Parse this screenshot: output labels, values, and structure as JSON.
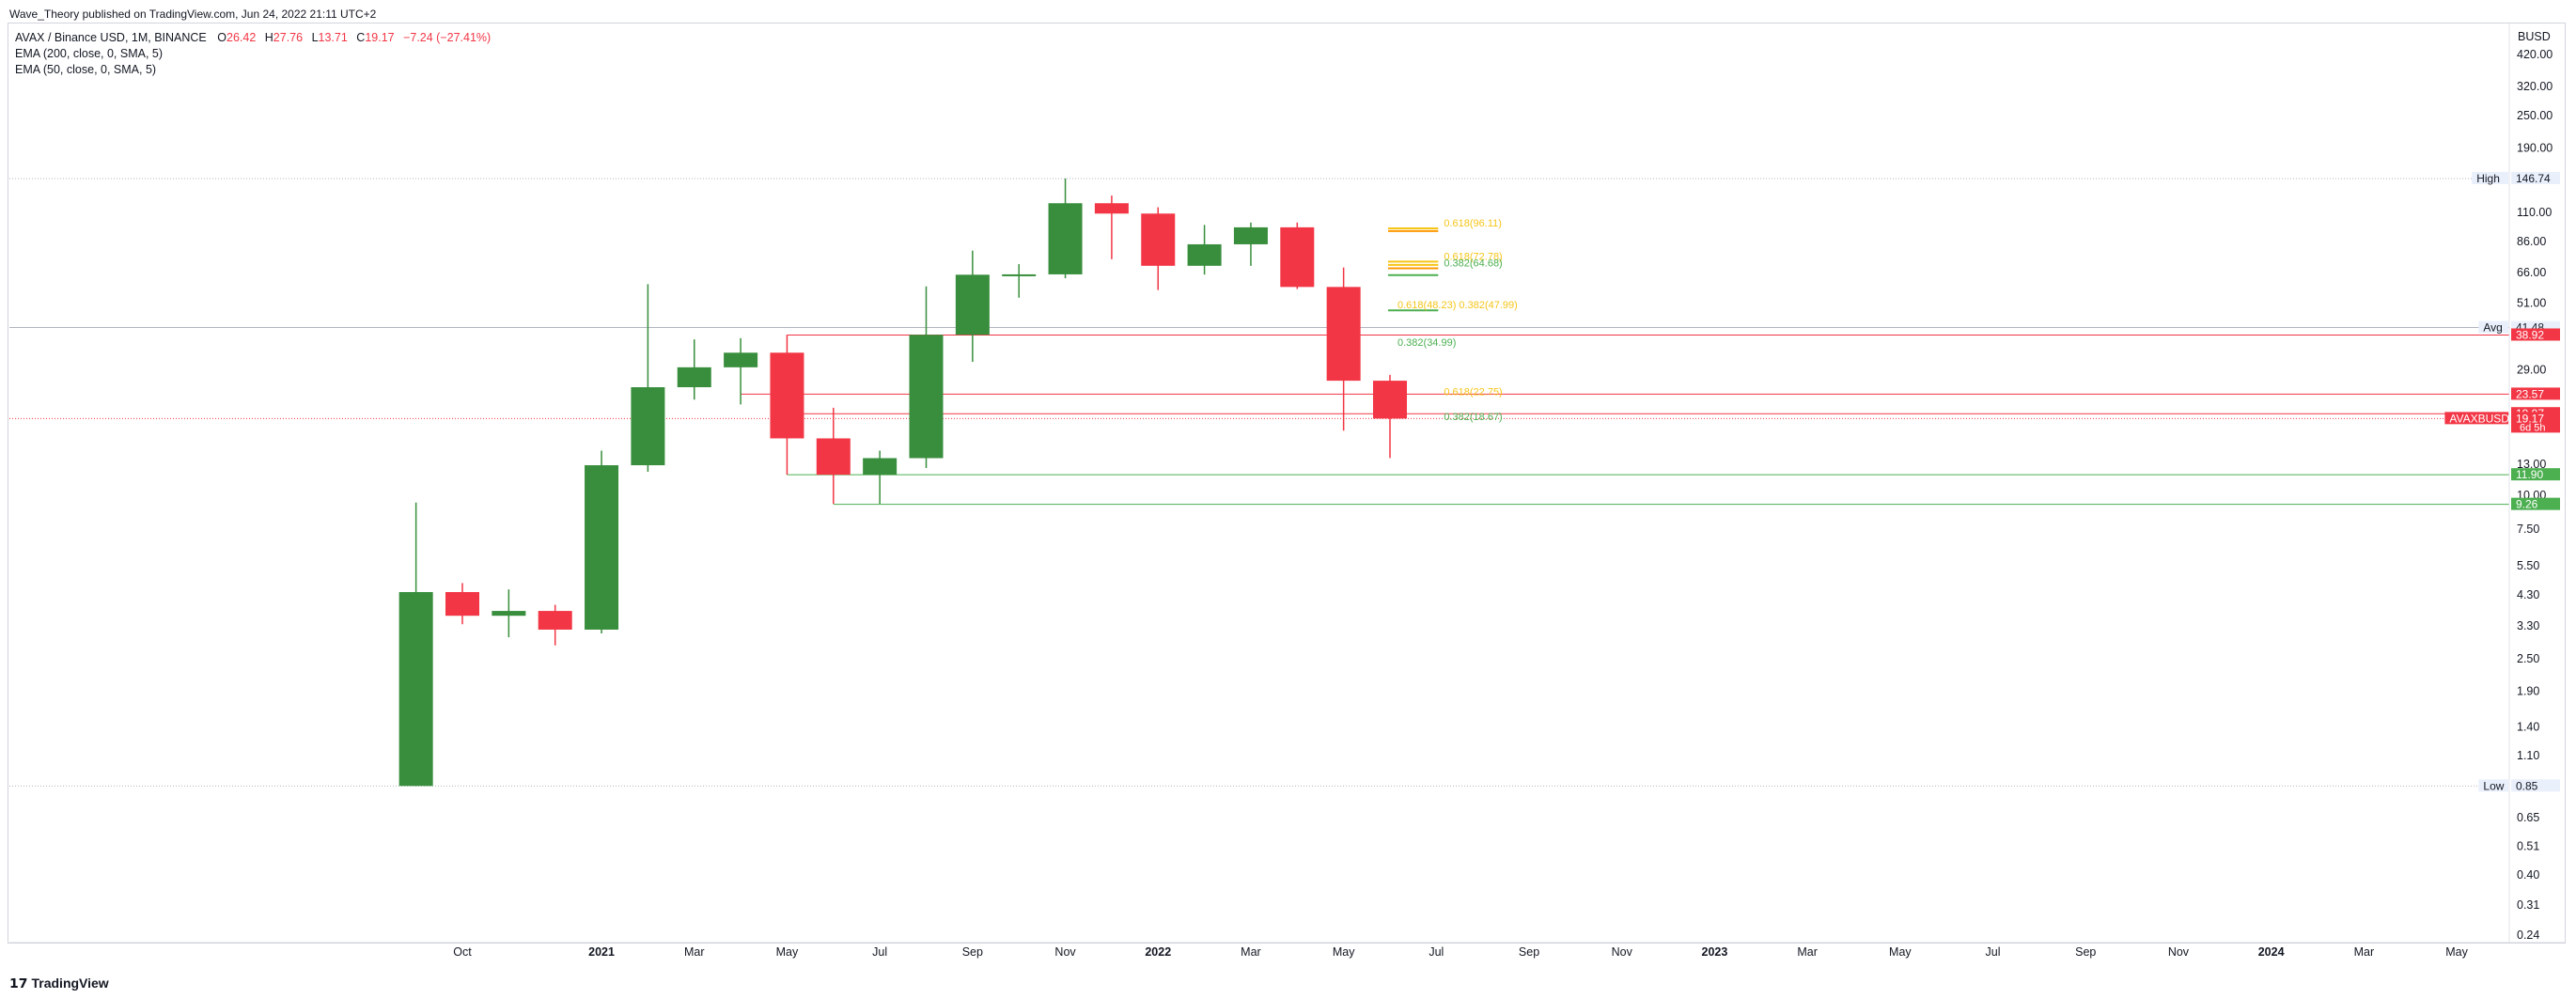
{
  "published": "Wave_Theory published on TradingView.com, Jun 24, 2022 21:11 UTC+2",
  "footer": {
    "brand": "TradingView",
    "logo": "tradingview-logo-icon"
  },
  "legend": {
    "symbol": "AVAX / Binance USD, 1M, BINANCE",
    "o_label": "O",
    "o_value": "26.42",
    "h_label": "H",
    "h_value": "27.76",
    "l_label": "L",
    "l_value": "13.71",
    "c_label": "C",
    "c_value": "19.17",
    "change": "−7.24 (−27.41%)",
    "indicators": [
      "EMA (200, close, 0, SMA, 5)",
      "EMA (50, close, 0, SMA, 5)"
    ]
  },
  "colors": {
    "up": "#388e3c",
    "down": "#f23645",
    "fib_yellow": "#f5c518",
    "fib_green": "#4caf50",
    "fib_orange": "#ff9800"
  },
  "chart_data": {
    "type": "candlestick",
    "title": "AVAX / Binance USD, 1M, BINANCE",
    "currency": "BUSD",
    "y_scale": "log",
    "ylim": [
      0.24,
      420
    ],
    "yticks": [
      "420.00",
      "320.00",
      "250.00",
      "190.00",
      "110.00",
      "86.00",
      "66.00",
      "51.00",
      "29.00",
      "13.00",
      "10.00",
      "7.50",
      "5.50",
      "4.30",
      "3.30",
      "2.50",
      "1.90",
      "1.40",
      "1.10",
      "0.65",
      "0.51",
      "0.40",
      "0.31",
      "0.24"
    ],
    "xticks": [
      {
        "label": "Oct",
        "month": "2020-10",
        "bold": false
      },
      {
        "label": "2021",
        "month": "2021-01",
        "bold": true
      },
      {
        "label": "Mar",
        "month": "2021-03",
        "bold": false
      },
      {
        "label": "May",
        "month": "2021-05",
        "bold": false
      },
      {
        "label": "Jul",
        "month": "2021-07",
        "bold": false
      },
      {
        "label": "Sep",
        "month": "2021-09",
        "bold": false
      },
      {
        "label": "Nov",
        "month": "2021-11",
        "bold": false
      },
      {
        "label": "2022",
        "month": "2022-01",
        "bold": true
      },
      {
        "label": "Mar",
        "month": "2022-03",
        "bold": false
      },
      {
        "label": "May",
        "month": "2022-05",
        "bold": false
      },
      {
        "label": "Jul",
        "month": "2022-07",
        "bold": false
      },
      {
        "label": "Sep",
        "month": "2022-09",
        "bold": false
      },
      {
        "label": "Nov",
        "month": "2022-11",
        "bold": false
      },
      {
        "label": "2023",
        "month": "2023-01",
        "bold": true
      },
      {
        "label": "Mar",
        "month": "2023-03",
        "bold": false
      },
      {
        "label": "May",
        "month": "2023-05",
        "bold": false
      },
      {
        "label": "Jul",
        "month": "2023-07",
        "bold": false
      },
      {
        "label": "Sep",
        "month": "2023-09",
        "bold": false
      },
      {
        "label": "Nov",
        "month": "2023-11",
        "bold": false
      },
      {
        "label": "2024",
        "month": "2024-01",
        "bold": true
      },
      {
        "label": "Mar",
        "month": "2024-03",
        "bold": false
      },
      {
        "label": "May",
        "month": "2024-05",
        "bold": false
      }
    ],
    "candles": [
      {
        "month": "2020-09",
        "open": 0.85,
        "high": 9.4,
        "low": 0.85,
        "close": 4.4
      },
      {
        "month": "2020-10",
        "open": 4.4,
        "high": 4.75,
        "low": 3.35,
        "close": 3.6
      },
      {
        "month": "2020-11",
        "open": 3.6,
        "high": 4.5,
        "low": 3.0,
        "close": 3.75
      },
      {
        "month": "2020-12",
        "open": 3.75,
        "high": 3.95,
        "low": 2.8,
        "close": 3.2
      },
      {
        "month": "2021-01",
        "open": 3.2,
        "high": 14.6,
        "low": 3.1,
        "close": 12.9
      },
      {
        "month": "2021-02",
        "open": 12.9,
        "high": 59.9,
        "low": 12.2,
        "close": 25.0
      },
      {
        "month": "2021-03",
        "open": 25.0,
        "high": 37.5,
        "low": 22.5,
        "close": 29.6
      },
      {
        "month": "2021-04",
        "open": 29.6,
        "high": 37.9,
        "low": 21.6,
        "close": 33.5
      },
      {
        "month": "2021-05",
        "open": 33.5,
        "high": 39.0,
        "low": 11.9,
        "close": 16.2
      },
      {
        "month": "2021-06",
        "open": 16.2,
        "high": 21.0,
        "low": 9.3,
        "close": 11.9
      },
      {
        "month": "2021-07",
        "open": 11.9,
        "high": 14.6,
        "low": 9.3,
        "close": 13.7
      },
      {
        "month": "2021-08",
        "open": 13.7,
        "high": 58.8,
        "low": 12.6,
        "close": 39.0
      },
      {
        "month": "2021-09",
        "open": 39.0,
        "high": 79.6,
        "low": 31.0,
        "close": 64.9
      },
      {
        "month": "2021-10",
        "open": 64.9,
        "high": 71.0,
        "low": 53.4,
        "close": 65.1
      },
      {
        "month": "2021-11",
        "open": 65.1,
        "high": 146.74,
        "low": 63.0,
        "close": 119.0
      },
      {
        "month": "2021-12",
        "open": 119.0,
        "high": 127.0,
        "low": 74.0,
        "close": 109.0
      },
      {
        "month": "2022-01",
        "open": 109.0,
        "high": 115.0,
        "low": 57.0,
        "close": 70.0
      },
      {
        "month": "2022-02",
        "open": 70.0,
        "high": 99.0,
        "low": 65.0,
        "close": 84.0
      },
      {
        "month": "2022-03",
        "open": 84.0,
        "high": 101.0,
        "low": 70.0,
        "close": 97.0
      },
      {
        "month": "2022-04",
        "open": 97.0,
        "high": 101.0,
        "low": 57.5,
        "close": 58.5
      },
      {
        "month": "2022-05",
        "open": 58.5,
        "high": 69.0,
        "low": 17.3,
        "close": 26.42
      },
      {
        "month": "2022-06",
        "open": 26.42,
        "high": 27.76,
        "low": 13.71,
        "close": 19.17
      }
    ],
    "horizontal_levels": [
      {
        "value": 146.74,
        "label": "High",
        "price": "146.74",
        "style": "dotted-gray",
        "tag_bg": "#e9f0fb",
        "tag_color": "#131722"
      },
      {
        "value": 41.48,
        "label": "Avg",
        "price": "41.48",
        "style": "solid-gray",
        "tag_bg": "#e9f0fb",
        "tag_color": "#131722"
      },
      {
        "value": 38.92,
        "label": "",
        "price": "38.92",
        "style": "red",
        "from_month": "2021-05",
        "tag_bg": "#f23645",
        "tag_color": "#ffffff"
      },
      {
        "value": 23.57,
        "label": "",
        "price": "23.57",
        "style": "red",
        "from_month": "2021-04",
        "tag_bg": "#f23645",
        "tag_color": "#ffffff"
      },
      {
        "value": 19.97,
        "label": "",
        "price": "19.97",
        "style": "red",
        "from_month": "2021-05",
        "tag_bg": "#f23645",
        "tag_color": "#ffffff"
      },
      {
        "value": 19.17,
        "label": "AVAXBUSD",
        "price": "19.17",
        "sub": "6d 5h",
        "style": "dotted-red",
        "tag_bg": "#f23645",
        "tag_color": "#ffffff"
      },
      {
        "value": 11.9,
        "label": "",
        "price": "11.90",
        "style": "green",
        "from_month": "2021-05",
        "tag_bg": "#4caf50",
        "tag_color": "#ffffff"
      },
      {
        "value": 9.26,
        "label": "",
        "price": "9.26",
        "style": "green",
        "from_month": "2021-06",
        "tag_bg": "#4caf50",
        "tag_color": "#ffffff"
      },
      {
        "value": 0.85,
        "label": "Low",
        "price": "0.85",
        "style": "dotted-gray",
        "tag_bg": "#e9f0fb",
        "tag_color": "#131722"
      }
    ],
    "fib_levels": [
      {
        "value": 96.11,
        "color": "#f5c518",
        "label": "0.618(96.11)",
        "label_month": "2022-07"
      },
      {
        "value": 94.0,
        "color": "#ff9800",
        "label": "",
        "label_month": "2022-07"
      },
      {
        "value": 72.5,
        "color": "#f5c518",
        "label": "0.618(72.78)",
        "label_month": "2022-07"
      },
      {
        "value": 70.5,
        "color": "#f5c518",
        "label": "",
        "label_month": "2022-07"
      },
      {
        "value": 68.5,
        "color": "#ff9800",
        "label": "0.382(64.68)",
        "label_month": "2022-07",
        "label_color": "#4caf50"
      },
      {
        "value": 64.68,
        "color": "#4caf50",
        "label": "",
        "label_month": "2022-07"
      },
      {
        "value": 47.99,
        "color": "#4caf50",
        "label": "0.618(48.23) 0.382(47.99)",
        "label_month": "2022-06",
        "label_color": "#f5c518"
      },
      {
        "value": 34.99,
        "color": "none",
        "label": "0.382(34.99)",
        "label_month": "2022-06",
        "label_color": "#4caf50"
      },
      {
        "value": 23.0,
        "color": "none",
        "label": "0.618(22.75)",
        "label_month": "2022-07",
        "label_color": "#f5c518"
      },
      {
        "value": 18.6,
        "color": "none",
        "label": "0.382(18.67)",
        "label_month": "2022-07",
        "label_color": "#4caf50"
      }
    ]
  }
}
